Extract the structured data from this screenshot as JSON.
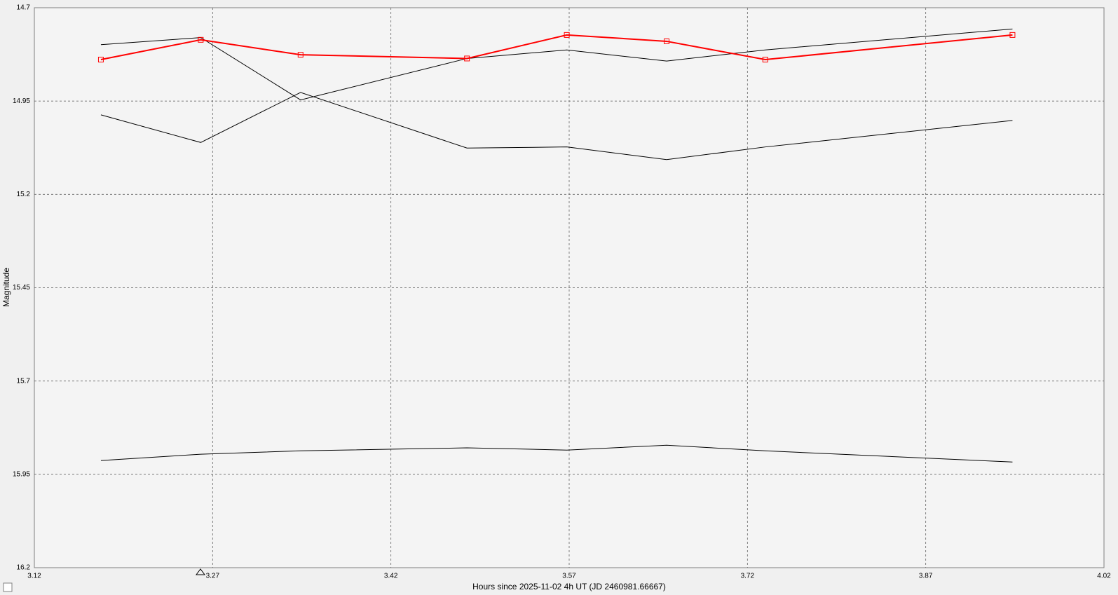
{
  "chart_data": {
    "type": "line",
    "x_label": "Hours since 2025-11-02 4h UT (JD 2460981.66667)",
    "y_label": "Magnitude",
    "x": [
      3.176,
      3.26,
      3.344,
      3.484,
      3.568,
      3.652,
      3.735,
      3.943
    ],
    "series": [
      {
        "color": "#000000",
        "values": [
          14.799,
          14.78,
          14.947,
          14.836,
          14.813,
          14.843,
          14.813,
          14.757
        ]
      },
      {
        "color": "#000000",
        "values": [
          14.987,
          15.061,
          14.927,
          15.076,
          15.073,
          15.107,
          15.073,
          15.002
        ]
      },
      {
        "color": "#000000",
        "values": [
          15.913,
          15.896,
          15.887,
          15.879,
          15.885,
          15.872,
          15.887,
          15.917
        ]
      },
      {
        "color": "#ff0000",
        "values": [
          14.839,
          14.786,
          14.826,
          14.836,
          14.773,
          14.79,
          14.839,
          14.773
        ],
        "marker": "square"
      }
    ],
    "xlim": [
      3.12,
      4.02
    ],
    "xticks": [
      3.12,
      3.27,
      3.42,
      3.57,
      3.72,
      3.87,
      4.02
    ],
    "ylim": [
      14.7,
      16.2
    ],
    "yticks": [
      14.7,
      14.95,
      15.2,
      15.45,
      15.7,
      15.95,
      16.2
    ],
    "invert_y": true,
    "grid": true
  }
}
